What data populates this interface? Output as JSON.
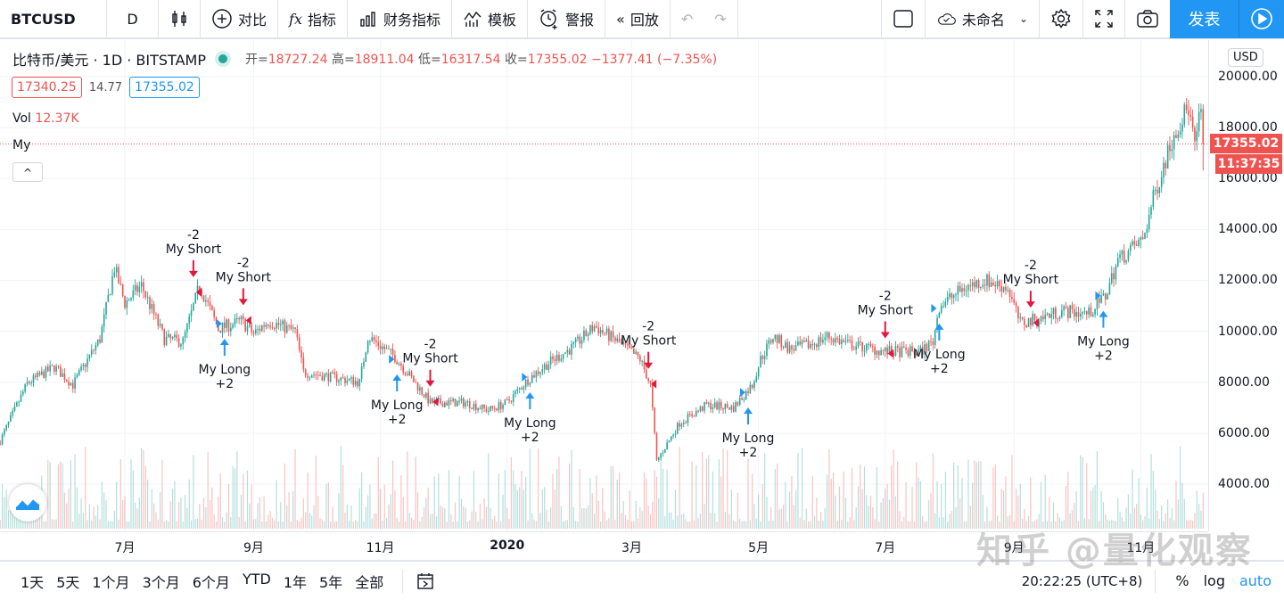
{
  "toolbar": {
    "symbol": "BTCUSD",
    "interval": "D",
    "compare": "对比",
    "indicators": "指标",
    "financials": "财务指标",
    "templates": "模板",
    "alerts": "警报",
    "replay": "回放",
    "layout_name": "未命名",
    "publish": "发表"
  },
  "legend": {
    "title": "比特币/美元 · 1D · BITSTAMP",
    "open_label": "开=",
    "open": "18727.24",
    "high_label": "高=",
    "high": "18911.04",
    "low_label": "低=",
    "low": "16317.54",
    "close_label": "收=",
    "close": "17355.02",
    "change": "−1377.41 (−7.35%)",
    "bid": "17340.25",
    "spread": "14.77",
    "ask": "17355.02",
    "vol_label": "Vol",
    "vol_value": "12.37K",
    "strategy": "My",
    "collapse": "^"
  },
  "price_axis": {
    "currency": "USD",
    "labels": [
      "20000.00",
      "18000.00",
      "16000.00",
      "14000.00",
      "12000.00",
      "10000.00",
      "8000.00",
      "6000.00",
      "4000.00"
    ],
    "last_price": "17355.02",
    "countdown": "11:37:35"
  },
  "time_axis": {
    "labels": [
      {
        "date": "2019-07-01",
        "text": "7月"
      },
      {
        "date": "2019-09-01",
        "text": "9月"
      },
      {
        "date": "2019-11-01",
        "text": "11月"
      },
      {
        "date": "2020-01-01",
        "text": "2020"
      },
      {
        "date": "2020-03-01",
        "text": "3月"
      },
      {
        "date": "2020-05-01",
        "text": "5月"
      },
      {
        "date": "2020-07-01",
        "text": "7月"
      },
      {
        "date": "2020-09-01",
        "text": "9月"
      },
      {
        "date": "2020-11-01",
        "text": "11月"
      }
    ]
  },
  "bottom": {
    "ranges": [
      "1天",
      "5天",
      "1个月",
      "3个月",
      "6个月",
      "YTD",
      "1年",
      "5年",
      "全部"
    ],
    "clock": "20:22:25 (UTC+8)",
    "percent": "%",
    "log": "log",
    "auto": "auto"
  },
  "watermark": "知乎 @量化观察",
  "colors": {
    "up": "#26a69a",
    "down": "#ef5350",
    "accent": "#2196f3",
    "short": "#e0193f",
    "long": "#2196f3"
  },
  "chart_data": {
    "type": "candlestick",
    "ylim": [
      2500,
      21500
    ],
    "grid": true,
    "price_path": [
      [
        "2019-05-02",
        5700
      ],
      [
        "2019-05-15",
        7950
      ],
      [
        "2019-05-28",
        8600
      ],
      [
        "2019-06-06",
        7900
      ],
      [
        "2019-06-19",
        9700
      ],
      [
        "2019-06-26",
        12500
      ],
      [
        "2019-07-01",
        11100
      ],
      [
        "2019-07-09",
        11800
      ],
      [
        "2019-07-20",
        9700
      ],
      [
        "2019-07-29",
        9600
      ],
      [
        "2019-08-06",
        11800
      ],
      [
        "2019-08-15",
        10100
      ],
      [
        "2019-08-26",
        10400
      ],
      [
        "2019-09-01",
        9900
      ],
      [
        "2019-09-08",
        10400
      ],
      [
        "2019-09-21",
        10000
      ],
      [
        "2019-09-25",
        8400
      ],
      [
        "2019-10-22",
        8000
      ],
      [
        "2019-10-26",
        9800
      ],
      [
        "2019-11-08",
        9000
      ],
      [
        "2019-11-25",
        7200
      ],
      [
        "2019-12-12",
        7200
      ],
      [
        "2019-12-23",
        6900
      ],
      [
        "2020-01-01",
        7200
      ],
      [
        "2020-01-11",
        8100
      ],
      [
        "2020-01-20",
        8700
      ],
      [
        "2020-02-02",
        9400
      ],
      [
        "2020-02-12",
        10200
      ],
      [
        "2020-02-23",
        9600
      ],
      [
        "2020-03-05",
        8900
      ],
      [
        "2020-03-10",
        7900
      ],
      [
        "2020-03-13",
        4900
      ],
      [
        "2020-03-24",
        6400
      ],
      [
        "2020-04-06",
        7100
      ],
      [
        "2020-04-19",
        7000
      ],
      [
        "2020-04-28",
        7900
      ],
      [
        "2020-05-02",
        8900
      ],
      [
        "2020-05-08",
        9800
      ],
      [
        "2020-05-16",
        9300
      ],
      [
        "2020-05-27",
        9500
      ],
      [
        "2020-06-03",
        9800
      ],
      [
        "2020-06-13",
        9500
      ],
      [
        "2020-07-01",
        9200
      ],
      [
        "2020-07-18",
        9200
      ],
      [
        "2020-07-24",
        9600
      ],
      [
        "2020-07-27",
        11000
      ],
      [
        "2020-08-08",
        11700
      ],
      [
        "2020-08-18",
        12000
      ],
      [
        "2020-08-29",
        11700
      ],
      [
        "2020-09-04",
        10300
      ],
      [
        "2020-09-13",
        10500
      ],
      [
        "2020-09-24",
        10800
      ],
      [
        "2020-10-07",
        10700
      ],
      [
        "2020-10-15",
        11400
      ],
      [
        "2020-10-21",
        12800
      ],
      [
        "2020-11-02",
        13600
      ],
      [
        "2020-11-08",
        15500
      ],
      [
        "2020-11-17",
        17800
      ],
      [
        "2020-11-24",
        18800
      ],
      [
        "2020-11-27",
        17200
      ],
      [
        "2020-11-30",
        18727.24
      ],
      [
        "2020-12-01",
        17355.02
      ]
    ],
    "signals": [
      {
        "date": "2019-08-03",
        "side": "short",
        "name": "My Short",
        "qty": "-2",
        "price": 11600
      },
      {
        "date": "2019-08-18",
        "side": "long",
        "name": "My Long",
        "qty": "+2",
        "price": 10300
      },
      {
        "date": "2019-08-27",
        "side": "short",
        "name": "My Short",
        "qty": "-2",
        "price": 10500
      },
      {
        "date": "2019-11-09",
        "side": "long",
        "name": "My Long",
        "qty": "+2",
        "price": 8900
      },
      {
        "date": "2019-11-25",
        "side": "short",
        "name": "My Short",
        "qty": "-2",
        "price": 7300
      },
      {
        "date": "2020-01-12",
        "side": "long",
        "name": "My Long",
        "qty": "+2",
        "price": 8200
      },
      {
        "date": "2020-03-09",
        "side": "short",
        "name": "My Short",
        "qty": "-2",
        "price": 8000
      },
      {
        "date": "2020-04-26",
        "side": "long",
        "name": "My Long",
        "qty": "+2",
        "price": 7600
      },
      {
        "date": "2020-07-01",
        "side": "short",
        "name": "My Short",
        "qty": "-2",
        "price": 9200
      },
      {
        "date": "2020-07-27",
        "side": "long",
        "name": "My Long",
        "qty": "+2",
        "price": 10900
      },
      {
        "date": "2020-09-09",
        "side": "short",
        "name": "My Short",
        "qty": "-2",
        "price": 10400
      },
      {
        "date": "2020-10-14",
        "side": "long",
        "name": "My Long",
        "qty": "+2",
        "price": 11400
      }
    ]
  }
}
